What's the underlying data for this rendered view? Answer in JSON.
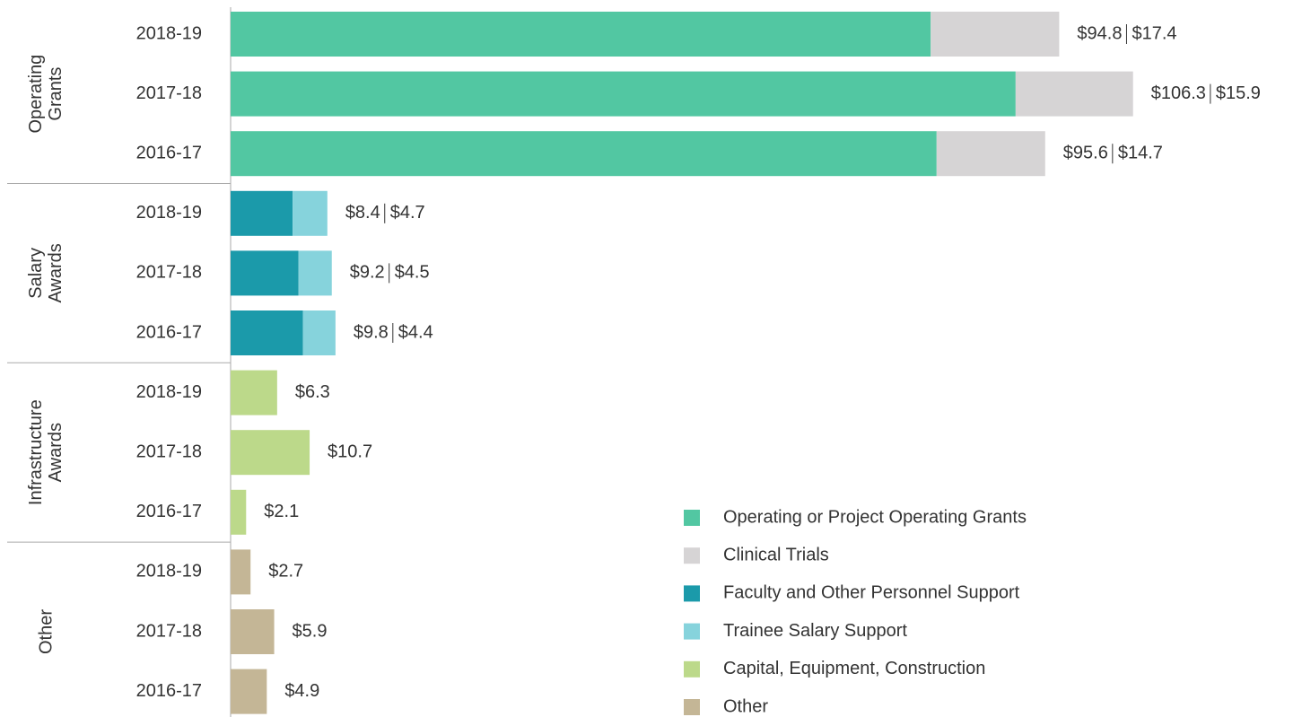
{
  "chart_data": {
    "type": "grouped-stacked-hbar",
    "groups": [
      {
        "name": "Operating Grants",
        "categories": [
          "2018-19",
          "2017-18",
          "2016-17"
        ]
      },
      {
        "name": "Salary Awards",
        "categories": [
          "2018-19",
          "2017-18",
          "2016-17"
        ]
      },
      {
        "name": "Infrastructure Awards",
        "categories": [
          "2018-19",
          "2017-18",
          "2016-17"
        ]
      },
      {
        "name": "Other",
        "categories": [
          "2018-19",
          "2017-18",
          "2016-17"
        ]
      }
    ],
    "series": [
      {
        "name": "Operating or Project Operating Grants",
        "color": "#52c7a2",
        "values": [
          94.8,
          106.3,
          95.6,
          null,
          null,
          null,
          null,
          null,
          null,
          null,
          null,
          null
        ],
        "value_labels": [
          "$94.8",
          "$106.3",
          "$95.6",
          null,
          null,
          null,
          null,
          null,
          null,
          null,
          null,
          null
        ]
      },
      {
        "name": "Clinical Trials",
        "color": "#d6d4d5",
        "values": [
          17.4,
          15.9,
          14.7,
          null,
          null,
          null,
          null,
          null,
          null,
          null,
          null,
          null
        ],
        "value_labels": [
          "$17.4",
          "$15.9",
          "$14.7",
          null,
          null,
          null,
          null,
          null,
          null,
          null,
          null,
          null
        ]
      },
      {
        "name": "Faculty and Other Personnel Support",
        "color": "#1b9aaa",
        "values": [
          null,
          null,
          null,
          8.4,
          9.2,
          9.8,
          null,
          null,
          null,
          null,
          null,
          null
        ],
        "value_labels": [
          null,
          null,
          null,
          "$8.4",
          "$9.2",
          "$9.8",
          null,
          null,
          null,
          null,
          null,
          null
        ]
      },
      {
        "name": "Trainee Salary Support",
        "color": "#86d3dc",
        "values": [
          null,
          null,
          null,
          4.7,
          4.5,
          4.4,
          null,
          null,
          null,
          null,
          null,
          null
        ],
        "value_labels": [
          null,
          null,
          null,
          "$4.7",
          "$4.5",
          "$4.4",
          null,
          null,
          null,
          null,
          null,
          null
        ]
      },
      {
        "name": "Capital, Equipment, Construction",
        "color": "#bcd98a",
        "values": [
          null,
          null,
          null,
          null,
          null,
          null,
          6.3,
          10.7,
          2.1,
          null,
          null,
          null
        ],
        "value_labels": [
          null,
          null,
          null,
          null,
          null,
          null,
          "$6.3",
          "$10.7",
          "$2.1",
          null,
          null,
          null
        ]
      },
      {
        "name": "Other",
        "color": "#c4b696",
        "values": [
          null,
          null,
          null,
          null,
          null,
          null,
          null,
          null,
          null,
          2.7,
          5.9,
          4.9
        ],
        "value_labels": [
          null,
          null,
          null,
          null,
          null,
          null,
          null,
          null,
          null,
          "$2.7",
          "$5.9",
          "$4.9"
        ]
      }
    ]
  }
}
